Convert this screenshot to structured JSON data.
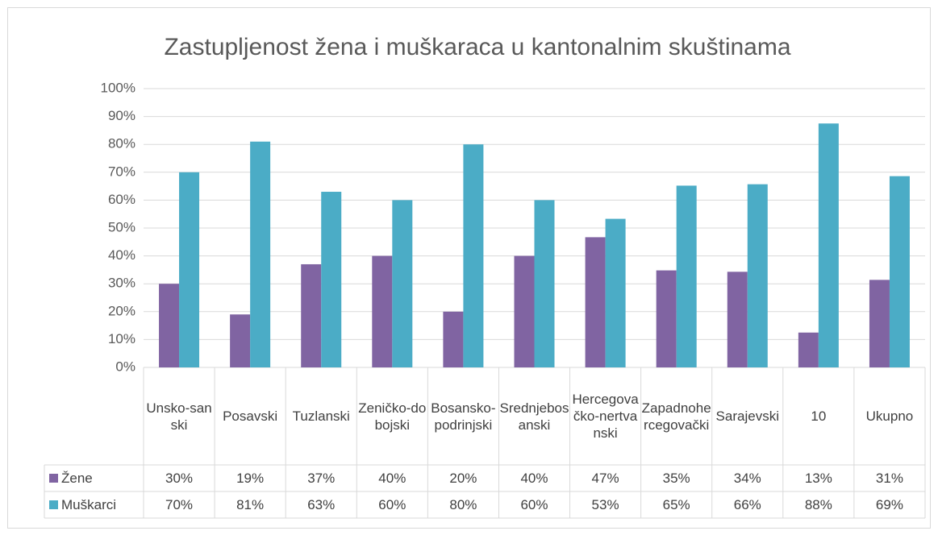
{
  "chart_data": {
    "type": "bar",
    "title": "Zastupljenost žena i muškaraca u kantonalnim skuštinama",
    "categories": [
      "Unsko-sanski",
      "Posavski",
      "Tuzlanski",
      "Zeničko-dobojski",
      "Bosansko-podrinjski",
      "Srednjebosanski",
      "Hercegovačko-nertvanski",
      "Zapadnohercegovački",
      "Sarajevski",
      "10",
      "Ukupno"
    ],
    "series": [
      {
        "name": "Žene",
        "color": "#8064a2",
        "values": [
          30,
          19,
          37,
          40,
          20,
          40,
          46.7,
          34.8,
          34.3,
          12.5,
          31.4
        ],
        "value_labels": [
          "30%",
          "19%",
          "37%",
          "40%",
          "20%",
          "40%",
          "47%",
          "35%",
          "34%",
          "13%",
          "31%"
        ]
      },
      {
        "name": "Muškarci",
        "color": "#4bacc6",
        "values": [
          70,
          81,
          63,
          60,
          80,
          60,
          53.3,
          65.2,
          65.7,
          87.5,
          68.6
        ],
        "value_labels": [
          "70%",
          "81%",
          "63%",
          "60%",
          "80%",
          "60%",
          "53%",
          "65%",
          "66%",
          "88%",
          "69%"
        ]
      }
    ],
    "ylim": [
      0,
      100
    ],
    "yticks": [
      {
        "value": 0,
        "label": "0%"
      },
      {
        "value": 10,
        "label": "10%"
      },
      {
        "value": 20,
        "label": "20%"
      },
      {
        "value": 30,
        "label": "30%"
      },
      {
        "value": 40,
        "label": "40%"
      },
      {
        "value": 50,
        "label": "50%"
      },
      {
        "value": 60,
        "label": "60%"
      },
      {
        "value": 70,
        "label": "70%"
      },
      {
        "value": 80,
        "label": "80%"
      },
      {
        "value": 90,
        "label": "90%"
      },
      {
        "value": 100,
        "label": "100%"
      }
    ],
    "grid": true
  }
}
